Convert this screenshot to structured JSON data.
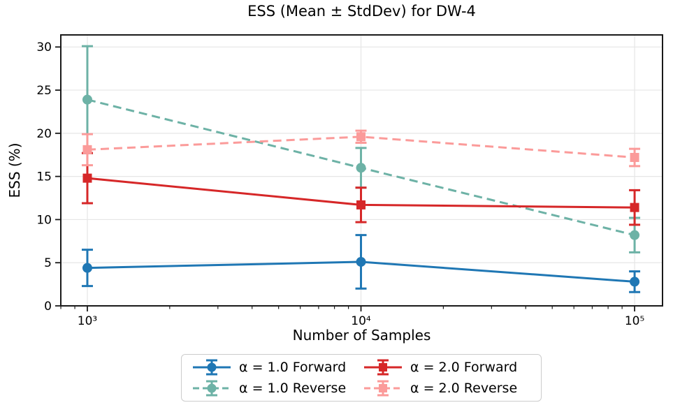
{
  "chart_data": {
    "type": "line",
    "title": "ESS (Mean ± StdDev) for DW-4",
    "xlabel": "Number of Samples",
    "ylabel": "ESS (%)",
    "x_scale": "log",
    "x": [
      1000,
      10000,
      100000
    ],
    "x_tick_labels": [
      "10³",
      "10⁴",
      "10⁵"
    ],
    "xlim_log10": [
      2.903,
      5.102
    ],
    "ylim": [
      0,
      31.4
    ],
    "y_ticks": [
      0,
      5,
      10,
      15,
      20,
      25,
      30
    ],
    "grid": true,
    "grid_color": "#e6e6e6",
    "frame_color": "#1a1a1a",
    "legend_position": "below-xlabel",
    "series": [
      {
        "name": "α = 1.0 Forward",
        "color": "#1f77b4",
        "linestyle": "solid",
        "marker": "circle",
        "means": [
          4.4,
          5.1,
          2.8
        ],
        "stddev": [
          2.1,
          3.1,
          1.2
        ]
      },
      {
        "name": "α = 1.0 Reverse",
        "color": "#6db2a6",
        "linestyle": "dashed",
        "marker": "circle",
        "means": [
          23.9,
          16.0,
          8.2
        ],
        "stddev": [
          6.2,
          2.3,
          2.0
        ]
      },
      {
        "name": "α = 2.0 Forward",
        "color": "#d62728",
        "linestyle": "solid",
        "marker": "square",
        "means": [
          14.8,
          11.7,
          11.4
        ],
        "stddev": [
          2.9,
          2.0,
          2.0
        ]
      },
      {
        "name": "α = 2.0 Reverse",
        "color": "#fb9b9a",
        "linestyle": "dashed",
        "marker": "square",
        "means": [
          18.1,
          19.6,
          17.2
        ],
        "stddev": [
          1.8,
          0.7,
          1.0
        ]
      }
    ]
  }
}
